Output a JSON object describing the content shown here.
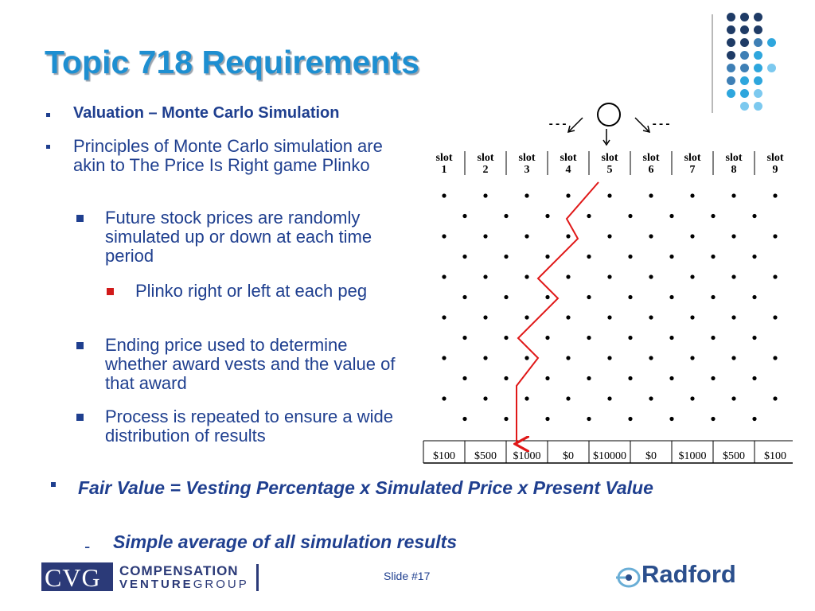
{
  "title": "Topic 718 Requirements",
  "bullets": [
    {
      "text": "Valuation – Monte Carlo Simulation",
      "level": 1,
      "bold": true
    },
    {
      "text": "Principles of Monte Carlo simulation are akin to The Price Is Right game Plinko",
      "level": 1
    },
    {
      "text": "Future stock prices are randomly simulated up or down at each time period",
      "level": 2
    },
    {
      "text": "Plinko right or left at each peg",
      "level": 3
    },
    {
      "text": "Ending price used to determine whether award vests and the value of that award",
      "level": 2
    },
    {
      "text": "Process is repeated to ensure a wide distribution of results",
      "level": 2
    }
  ],
  "plinko": {
    "arrow_labels": [
      "---",
      "---"
    ],
    "slot_word": "slot",
    "slots": [
      "1",
      "2",
      "3",
      "4",
      "5",
      "6",
      "7",
      "8",
      "9"
    ],
    "prizes": [
      "$100",
      "$500",
      "$1000",
      "$0",
      "$10000",
      "$0",
      "$1000",
      "$500",
      "$100"
    ]
  },
  "fair_value": {
    "text": "Fair Value = Vesting Percentage x Simulated Price x Present Value",
    "sub_marker": "-",
    "sub": "Simple average of all simulation results"
  },
  "footer": {
    "cvg_logo_text": "CVG",
    "company_line1": "COMPENSATION",
    "company_line2a": "VENTURE",
    "company_line2b": "GROUP",
    "slide_number": "Slide #17",
    "radford": "Radford"
  },
  "colors": {
    "title": "#1e8fd1",
    "text": "#1f3f8f",
    "red_marker": "#d11a1a",
    "path": "#e01818",
    "dot_dark": "#1f3b66",
    "dot_mid": "#3e7fb5",
    "dot_light": "#2ea6dd",
    "dot_pale": "#7cc9ef"
  }
}
